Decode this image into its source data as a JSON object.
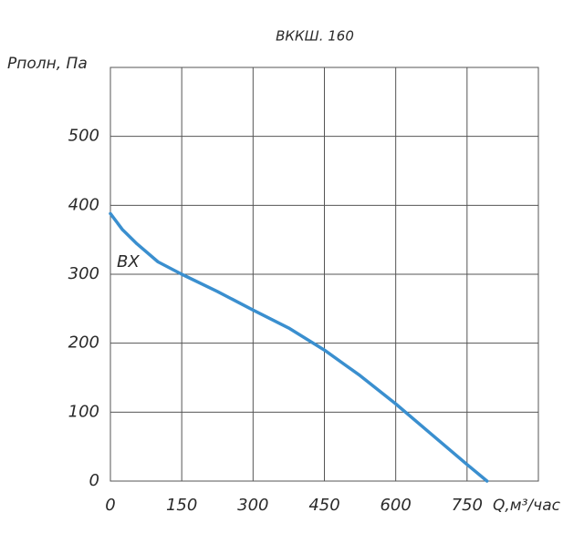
{
  "chart_data": {
    "type": "line",
    "title": "ВККШ. 160",
    "y_label": "Pполн, Па",
    "x_label": "Q,м³/час",
    "annotation": "ВХ",
    "x": [
      0,
      25,
      56,
      100,
      150,
      225,
      300,
      375,
      450,
      525,
      600,
      675,
      750,
      792
    ],
    "series": [
      {
        "name": "ВХ",
        "color": "#3a8fcf",
        "values": [
          388,
          365,
          344,
          318,
          300,
          275,
          248,
          222,
          190,
          153,
          112,
          68,
          24,
          0
        ]
      }
    ],
    "xlim": [
      0,
      900
    ],
    "ylim": [
      0,
      600
    ],
    "xticks": [
      0,
      150,
      300,
      450,
      600,
      750
    ],
    "yticks": [
      0,
      100,
      200,
      300,
      400,
      500
    ],
    "grid": true
  }
}
